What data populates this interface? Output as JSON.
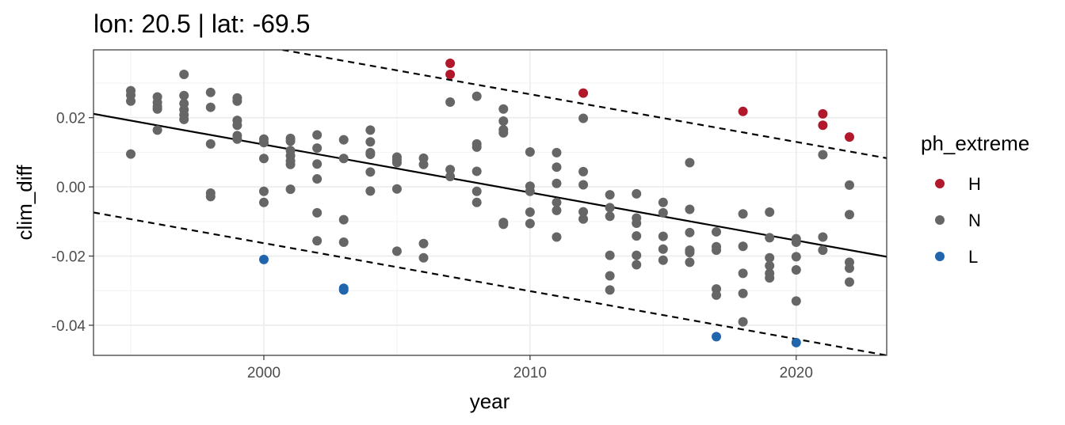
{
  "chart_data": {
    "type": "scatter",
    "title": "lon: 20.5 | lat: -69.5",
    "xlabel": "year",
    "ylabel": "clim_diff",
    "xlim": [
      1993.6,
      2023.4
    ],
    "ylim": [
      -0.0487,
      0.0396
    ],
    "x_ticks": [
      2000,
      2010,
      2020
    ],
    "x_tick_labels": [
      "2000",
      "2010",
      "2020"
    ],
    "y_ticks": [
      -0.04,
      -0.02,
      0.0,
      0.02
    ],
    "y_tick_labels": [
      "-0.04",
      "-0.02",
      "0.00",
      "0.02"
    ],
    "grid": true,
    "legend": {
      "title": "ph_extreme",
      "position": "right",
      "entries": [
        {
          "label": "H",
          "color": "#b2182b"
        },
        {
          "label": "N",
          "color": "#666666"
        },
        {
          "label": "L",
          "color": "#2166ac"
        }
      ]
    },
    "trend_line": {
      "x": [
        1993.6,
        2023.4
      ],
      "y": [
        0.0211,
        -0.0202
      ],
      "style": "solid"
    },
    "bound_lines": [
      {
        "x": [
          2000.7,
          2023.4
        ],
        "y": [
          0.0396,
          0.0083
        ],
        "style": "dashed"
      },
      {
        "x": [
          1993.6,
          2023.4
        ],
        "y": [
          -0.0074,
          -0.0487
        ],
        "style": "dashed"
      }
    ],
    "series": [
      {
        "name": "H",
        "color": "#b2182b",
        "points": [
          [
            2007,
            0.0357
          ],
          [
            2007,
            0.0325
          ],
          [
            2012,
            0.0271
          ],
          [
            2018,
            0.0218
          ],
          [
            2021,
            0.0211
          ],
          [
            2021,
            0.0178
          ],
          [
            2022,
            0.0144
          ]
        ]
      },
      {
        "name": "N",
        "color": "#666666",
        "points": [
          [
            1995,
            0.0278
          ],
          [
            1995,
            0.0265
          ],
          [
            1995,
            0.0248
          ],
          [
            1995,
            0.0095
          ],
          [
            1996,
            0.026
          ],
          [
            1996,
            0.0244
          ],
          [
            1996,
            0.0232
          ],
          [
            1996,
            0.0225
          ],
          [
            1996,
            0.0164
          ],
          [
            1997,
            0.0325
          ],
          [
            1997,
            0.0264
          ],
          [
            1997,
            0.0241
          ],
          [
            1997,
            0.0223
          ],
          [
            1997,
            0.0208
          ],
          [
            1997,
            0.0195
          ],
          [
            1998,
            0.0273
          ],
          [
            1998,
            0.023
          ],
          [
            1998,
            0.0124
          ],
          [
            1998,
            -0.0018
          ],
          [
            1998,
            -0.0028
          ],
          [
            1999,
            0.0257
          ],
          [
            1999,
            0.0248
          ],
          [
            1999,
            0.0192
          ],
          [
            1999,
            0.0178
          ],
          [
            1999,
            0.0148
          ],
          [
            1999,
            0.0138
          ],
          [
            2000,
            0.0138
          ],
          [
            2000,
            0.0128
          ],
          [
            2000,
            0.0082
          ],
          [
            2000,
            -0.0013
          ],
          [
            2000,
            -0.0045
          ],
          [
            2001,
            0.014
          ],
          [
            2001,
            0.0132
          ],
          [
            2001,
            0.0105
          ],
          [
            2001,
            0.009
          ],
          [
            2001,
            0.0075
          ],
          [
            2001,
            0.0065
          ],
          [
            2001,
            -0.0007
          ],
          [
            2002,
            0.015
          ],
          [
            2002,
            0.0112
          ],
          [
            2002,
            0.0066
          ],
          [
            2002,
            0.0023
          ],
          [
            2002,
            -0.0075
          ],
          [
            2002,
            -0.0156
          ],
          [
            2003,
            0.0136
          ],
          [
            2003,
            0.0082
          ],
          [
            2003,
            -0.0095
          ],
          [
            2003,
            -0.016
          ],
          [
            2004,
            0.0164
          ],
          [
            2004,
            0.013
          ],
          [
            2004,
            0.0099
          ],
          [
            2004,
            0.0094
          ],
          [
            2004,
            0.0043
          ],
          [
            2004,
            -0.0012
          ],
          [
            2005,
            0.0086
          ],
          [
            2005,
            0.0078
          ],
          [
            2005,
            0.007
          ],
          [
            2005,
            -0.0006
          ],
          [
            2005,
            -0.0186
          ],
          [
            2006,
            0.0083
          ],
          [
            2006,
            0.0065
          ],
          [
            2006,
            -0.0164
          ],
          [
            2006,
            -0.0205
          ],
          [
            2007,
            0.0245
          ],
          [
            2007,
            0.005
          ],
          [
            2007,
            0.003
          ],
          [
            2008,
            0.0262
          ],
          [
            2008,
            0.0124
          ],
          [
            2008,
            0.0115
          ],
          [
            2008,
            0.0045
          ],
          [
            2008,
            -0.0013
          ],
          [
            2008,
            -0.0045
          ],
          [
            2009,
            0.0225
          ],
          [
            2009,
            0.019
          ],
          [
            2009,
            0.0165
          ],
          [
            2009,
            0.0156
          ],
          [
            2009,
            -0.0103
          ],
          [
            2009,
            -0.0108
          ],
          [
            2010,
            0.0101
          ],
          [
            2010,
            0.0002
          ],
          [
            2010,
            -0.0013
          ],
          [
            2010,
            -0.0073
          ],
          [
            2010,
            -0.0106
          ],
          [
            2011,
            0.0099
          ],
          [
            2011,
            0.0057
          ],
          [
            2011,
            0.001
          ],
          [
            2011,
            -0.0045
          ],
          [
            2011,
            -0.0068
          ],
          [
            2011,
            -0.0145
          ],
          [
            2012,
            0.0198
          ],
          [
            2012,
            0.0044
          ],
          [
            2012,
            0.0006
          ],
          [
            2012,
            -0.0072
          ],
          [
            2012,
            -0.0093
          ],
          [
            2013,
            -0.0023
          ],
          [
            2013,
            -0.006
          ],
          [
            2013,
            -0.0085
          ],
          [
            2013,
            -0.0198
          ],
          [
            2013,
            -0.0257
          ],
          [
            2013,
            -0.0298
          ],
          [
            2014,
            -0.002
          ],
          [
            2014,
            -0.009
          ],
          [
            2014,
            -0.0105
          ],
          [
            2014,
            -0.0142
          ],
          [
            2014,
            -0.0198
          ],
          [
            2014,
            -0.0225
          ],
          [
            2015,
            -0.0045
          ],
          [
            2015,
            -0.0075
          ],
          [
            2015,
            -0.0143
          ],
          [
            2015,
            -0.018
          ],
          [
            2015,
            -0.0212
          ],
          [
            2016,
            0.007
          ],
          [
            2016,
            -0.0065
          ],
          [
            2016,
            -0.0132
          ],
          [
            2016,
            -0.0183
          ],
          [
            2016,
            -0.019
          ],
          [
            2016,
            -0.0218
          ],
          [
            2017,
            -0.013
          ],
          [
            2017,
            -0.0173
          ],
          [
            2017,
            -0.0183
          ],
          [
            2017,
            -0.0295
          ],
          [
            2017,
            -0.0313
          ],
          [
            2018,
            -0.0078
          ],
          [
            2018,
            -0.0172
          ],
          [
            2018,
            -0.025
          ],
          [
            2018,
            -0.0308
          ],
          [
            2018,
            -0.039
          ],
          [
            2019,
            -0.0073
          ],
          [
            2019,
            -0.0147
          ],
          [
            2019,
            -0.0205
          ],
          [
            2019,
            -0.0228
          ],
          [
            2019,
            -0.025
          ],
          [
            2019,
            -0.0263
          ],
          [
            2020,
            -0.015
          ],
          [
            2020,
            -0.016
          ],
          [
            2020,
            -0.0202
          ],
          [
            2020,
            -0.024
          ],
          [
            2020,
            -0.033
          ],
          [
            2021,
            0.0093
          ],
          [
            2021,
            -0.0145
          ],
          [
            2021,
            -0.0183
          ],
          [
            2022,
            0.0005
          ],
          [
            2022,
            -0.008
          ],
          [
            2022,
            -0.0218
          ],
          [
            2022,
            -0.0235
          ],
          [
            2022,
            -0.0275
          ]
        ]
      },
      {
        "name": "L",
        "color": "#2166ac",
        "points": [
          [
            2000,
            -0.021
          ],
          [
            2003,
            -0.0293
          ],
          [
            2003,
            -0.0298
          ],
          [
            2017,
            -0.0433
          ],
          [
            2020,
            -0.045
          ]
        ]
      }
    ]
  }
}
